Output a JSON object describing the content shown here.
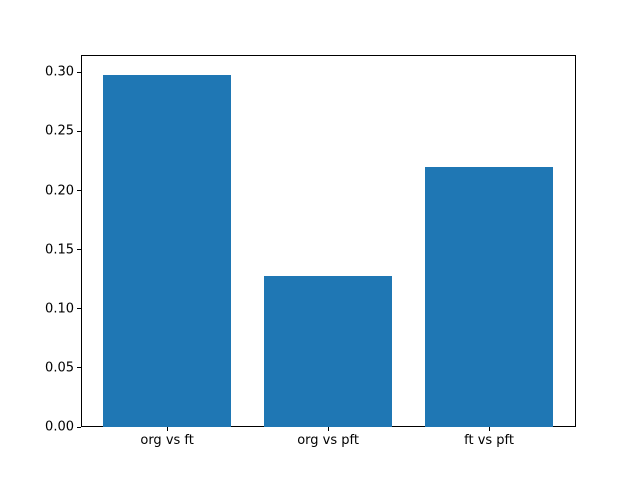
{
  "chart_data": {
    "type": "bar",
    "title": "",
    "xlabel": "",
    "ylabel": "",
    "categories": [
      "org vs ft",
      "org vs pft",
      "ft vs pft"
    ],
    "values": [
      0.298,
      0.128,
      0.22
    ],
    "ytick_values": [
      0.0,
      0.05,
      0.1,
      0.15,
      0.2,
      0.25,
      0.3
    ],
    "ytick_labels": [
      "0.00",
      "0.05",
      "0.10",
      "0.15",
      "0.20",
      "0.25",
      "0.30"
    ],
    "ylim": [
      0,
      0.3146
    ],
    "bar_color": "#1f77b4",
    "frame_color": "#000000",
    "background_color": "#ffffff",
    "grid": false,
    "legend_position": "none"
  }
}
